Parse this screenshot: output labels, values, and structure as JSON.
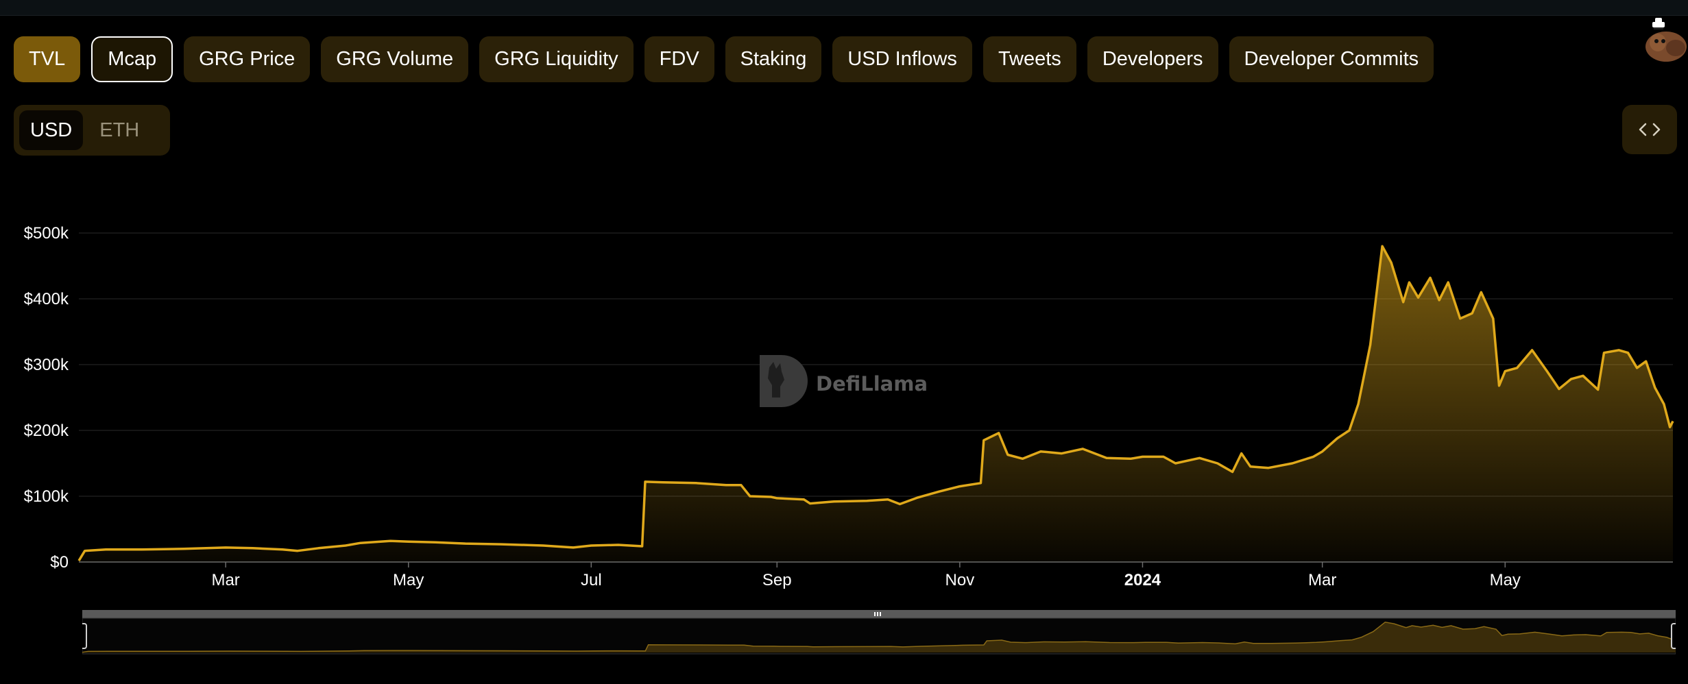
{
  "tabs": [
    {
      "label": "TVL",
      "state": "active"
    },
    {
      "label": "Mcap",
      "state": "outlined"
    },
    {
      "label": "GRG Price",
      "state": "normal"
    },
    {
      "label": "GRG Volume",
      "state": "normal"
    },
    {
      "label": "GRG Liquidity",
      "state": "normal"
    },
    {
      "label": "FDV",
      "state": "normal"
    },
    {
      "label": "Staking",
      "state": "normal"
    },
    {
      "label": "USD Inflows",
      "state": "normal"
    },
    {
      "label": "Tweets",
      "state": "normal"
    },
    {
      "label": "Developers",
      "state": "normal"
    },
    {
      "label": "Developer Commits",
      "state": "normal"
    }
  ],
  "currency_toggle": {
    "options": [
      "USD",
      "ETH"
    ],
    "selected": "USD"
  },
  "embed_icon": "code-brackets-icon",
  "avatar_icon": "llama-avatar-icon",
  "watermark": {
    "text": "DefiLlama",
    "icon": "defillama-logo-icon"
  },
  "colors": {
    "line": "#e0a91b",
    "tab_active": "#7b5a0a",
    "tab_bg": "#2b2108",
    "background": "#000000"
  },
  "chart_data": {
    "type": "area",
    "title": "",
    "xlabel": "",
    "ylabel": "",
    "ylim": [
      0,
      500000
    ],
    "y_ticks": [
      {
        "value": 0,
        "label": "$0"
      },
      {
        "value": 100000,
        "label": "$100k"
      },
      {
        "value": 200000,
        "label": "$200k"
      },
      {
        "value": 300000,
        "label": "$300k"
      },
      {
        "value": 400000,
        "label": "$400k"
      },
      {
        "value": 500000,
        "label": "$500k"
      }
    ],
    "x_range": [
      "2023-01-11",
      "2024-06-26"
    ],
    "x_ticks": [
      {
        "date": "2023-03-01",
        "label": "Mar",
        "bold": false
      },
      {
        "date": "2023-05-01",
        "label": "May",
        "bold": false
      },
      {
        "date": "2023-07-01",
        "label": "Jul",
        "bold": false
      },
      {
        "date": "2023-09-01",
        "label": "Sep",
        "bold": false
      },
      {
        "date": "2023-11-01",
        "label": "Nov",
        "bold": false
      },
      {
        "date": "2024-01-01",
        "label": "2024",
        "bold": true
      },
      {
        "date": "2024-03-01",
        "label": "Mar",
        "bold": false
      },
      {
        "date": "2024-05-01",
        "label": "May",
        "bold": false
      }
    ],
    "grid": true,
    "series": [
      {
        "points": [
          [
            "2023-01-11",
            2000
          ],
          [
            "2023-01-13",
            17000
          ],
          [
            "2023-01-20",
            19000
          ],
          [
            "2023-02-01",
            19000
          ],
          [
            "2023-02-15",
            20000
          ],
          [
            "2023-03-01",
            22000
          ],
          [
            "2023-03-10",
            21000
          ],
          [
            "2023-03-20",
            19000
          ],
          [
            "2023-03-25",
            17000
          ],
          [
            "2023-04-01",
            21000
          ],
          [
            "2023-04-10",
            25000
          ],
          [
            "2023-04-15",
            29000
          ],
          [
            "2023-04-25",
            32000
          ],
          [
            "2023-05-01",
            31000
          ],
          [
            "2023-05-10",
            30000
          ],
          [
            "2023-05-20",
            28000
          ],
          [
            "2023-06-01",
            27000
          ],
          [
            "2023-06-15",
            25000
          ],
          [
            "2023-06-25",
            22000
          ],
          [
            "2023-07-01",
            25000
          ],
          [
            "2023-07-10",
            26000
          ],
          [
            "2023-07-18",
            24000
          ],
          [
            "2023-07-19",
            122000
          ],
          [
            "2023-07-25",
            121000
          ],
          [
            "2023-08-05",
            120000
          ],
          [
            "2023-08-15",
            117000
          ],
          [
            "2023-08-20",
            117000
          ],
          [
            "2023-08-23",
            100000
          ],
          [
            "2023-08-30",
            99000
          ],
          [
            "2023-09-01",
            97000
          ],
          [
            "2023-09-10",
            95000
          ],
          [
            "2023-09-12",
            89000
          ],
          [
            "2023-09-20",
            92000
          ],
          [
            "2023-10-01",
            93000
          ],
          [
            "2023-10-08",
            95000
          ],
          [
            "2023-10-12",
            88000
          ],
          [
            "2023-10-18",
            98000
          ],
          [
            "2023-10-25",
            107000
          ],
          [
            "2023-11-01",
            115000
          ],
          [
            "2023-11-08",
            120000
          ],
          [
            "2023-11-09",
            185000
          ],
          [
            "2023-11-14",
            196000
          ],
          [
            "2023-11-17",
            163000
          ],
          [
            "2023-11-22",
            157000
          ],
          [
            "2023-11-28",
            168000
          ],
          [
            "2023-12-05",
            165000
          ],
          [
            "2023-12-12",
            172000
          ],
          [
            "2023-12-20",
            158000
          ],
          [
            "2023-12-28",
            157000
          ],
          [
            "2024-01-01",
            160000
          ],
          [
            "2024-01-08",
            160000
          ],
          [
            "2024-01-12",
            150000
          ],
          [
            "2024-01-20",
            158000
          ],
          [
            "2024-01-26",
            150000
          ],
          [
            "2024-01-31",
            137000
          ],
          [
            "2024-02-03",
            165000
          ],
          [
            "2024-02-06",
            145000
          ],
          [
            "2024-02-12",
            143000
          ],
          [
            "2024-02-20",
            150000
          ],
          [
            "2024-02-27",
            160000
          ],
          [
            "2024-03-01",
            168000
          ],
          [
            "2024-03-06",
            188000
          ],
          [
            "2024-03-10",
            200000
          ],
          [
            "2024-03-13",
            240000
          ],
          [
            "2024-03-17",
            330000
          ],
          [
            "2024-03-21",
            480000
          ],
          [
            "2024-03-24",
            455000
          ],
          [
            "2024-03-28",
            395000
          ],
          [
            "2024-03-30",
            425000
          ],
          [
            "2024-04-02",
            402000
          ],
          [
            "2024-04-06",
            432000
          ],
          [
            "2024-04-09",
            398000
          ],
          [
            "2024-04-12",
            425000
          ],
          [
            "2024-04-16",
            370000
          ],
          [
            "2024-04-20",
            378000
          ],
          [
            "2024-04-23",
            410000
          ],
          [
            "2024-04-27",
            370000
          ],
          [
            "2024-04-29",
            268000
          ],
          [
            "2024-05-01",
            290000
          ],
          [
            "2024-05-05",
            295000
          ],
          [
            "2024-05-10",
            322000
          ],
          [
            "2024-05-15",
            290000
          ],
          [
            "2024-05-19",
            263000
          ],
          [
            "2024-05-23",
            278000
          ],
          [
            "2024-05-27",
            283000
          ],
          [
            "2024-06-01",
            262000
          ],
          [
            "2024-06-03",
            318000
          ],
          [
            "2024-06-08",
            322000
          ],
          [
            "2024-06-11",
            318000
          ],
          [
            "2024-06-14",
            295000
          ],
          [
            "2024-06-17",
            305000
          ],
          [
            "2024-06-20",
            265000
          ],
          [
            "2024-06-23",
            240000
          ],
          [
            "2024-06-25",
            205000
          ],
          [
            "2024-06-26",
            214000
          ]
        ]
      }
    ]
  }
}
